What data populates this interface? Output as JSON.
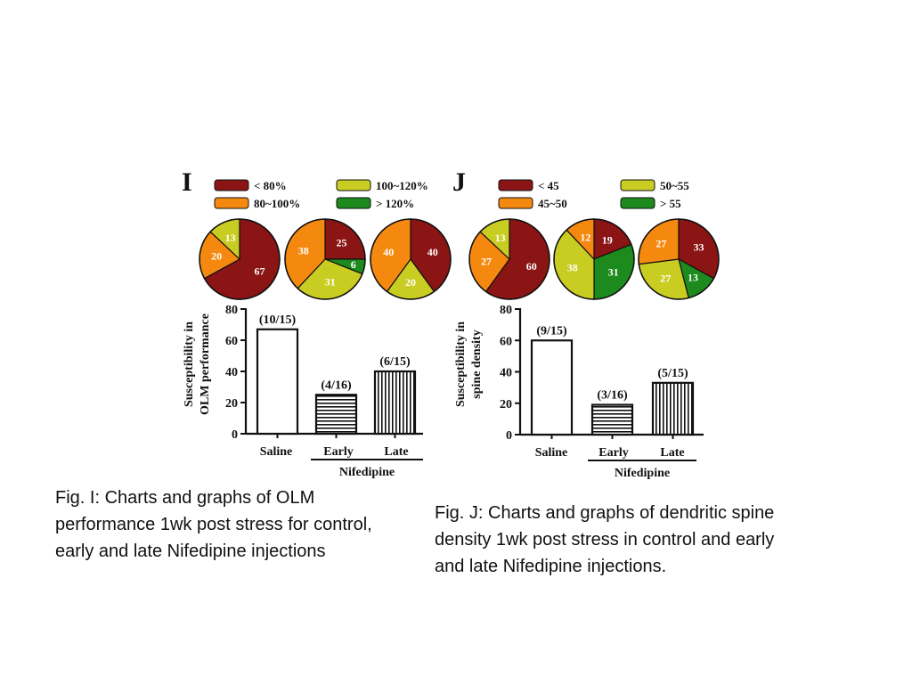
{
  "colors": {
    "dark_red": "#8b1414",
    "orange": "#f5890f",
    "yellow": "#c9cd22",
    "green": "#1d8a1d"
  },
  "chart_data": [
    {
      "type": "pie",
      "panel": "I",
      "legend": [
        {
          "label": "< 80%",
          "color": "#8b1414"
        },
        {
          "label": "80~100%",
          "color": "#f5890f"
        },
        {
          "label": "100~120%",
          "color": "#c9cd22"
        },
        {
          "label": "> 120%",
          "color": "#1d8a1d"
        }
      ],
      "pies": [
        {
          "slices": [
            {
              "value": 67,
              "color": "#8b1414"
            },
            {
              "value": 20,
              "color": "#f5890f"
            },
            {
              "value": 13,
              "color": "#c9cd22"
            }
          ]
        },
        {
          "slices": [
            {
              "value": 25,
              "color": "#8b1414"
            },
            {
              "value": 6,
              "color": "#1d8a1d"
            },
            {
              "value": 31,
              "color": "#c9cd22"
            },
            {
              "value": 38,
              "color": "#f5890f"
            }
          ]
        },
        {
          "slices": [
            {
              "value": 40,
              "color": "#8b1414"
            },
            {
              "value": 20,
              "color": "#c9cd22"
            },
            {
              "value": 40,
              "color": "#f5890f"
            }
          ]
        }
      ]
    },
    {
      "type": "bar",
      "panel": "I",
      "categories": [
        "Saline",
        "Early",
        "Late"
      ],
      "values": [
        67,
        25,
        40
      ],
      "bar_labels": [
        "(10/15)",
        "(4/16)",
        "(6/15)"
      ],
      "patterns": [
        "solid",
        "horizontal",
        "vertical"
      ],
      "ylabel_lines": [
        "Susceptibility in",
        "OLM performance"
      ],
      "yticks": [
        0,
        20,
        40,
        60,
        80
      ],
      "ylim": [
        0,
        80
      ],
      "group_label": "Nifedipine"
    },
    {
      "type": "pie",
      "panel": "J",
      "legend": [
        {
          "label": "< 45",
          "color": "#8b1414"
        },
        {
          "label": "45~50",
          "color": "#f5890f"
        },
        {
          "label": "50~55",
          "color": "#c9cd22"
        },
        {
          "label": "> 55",
          "color": "#1d8a1d"
        }
      ],
      "pies": [
        {
          "slices": [
            {
              "value": 60,
              "color": "#8b1414"
            },
            {
              "value": 27,
              "color": "#f5890f"
            },
            {
              "value": 13,
              "color": "#c9cd22"
            }
          ]
        },
        {
          "slices": [
            {
              "value": 19,
              "color": "#8b1414"
            },
            {
              "value": 31,
              "color": "#1d8a1d"
            },
            {
              "value": 38,
              "color": "#c9cd22"
            },
            {
              "value": 12,
              "color": "#f5890f"
            }
          ]
        },
        {
          "slices": [
            {
              "value": 33,
              "color": "#8b1414"
            },
            {
              "value": 13,
              "color": "#1d8a1d"
            },
            {
              "value": 27,
              "color": "#c9cd22"
            },
            {
              "value": 27,
              "color": "#f5890f"
            }
          ]
        }
      ]
    },
    {
      "type": "bar",
      "panel": "J",
      "categories": [
        "Saline",
        "Early",
        "Late"
      ],
      "values": [
        60,
        19,
        33
      ],
      "bar_labels": [
        "(9/15)",
        "(3/16)",
        "(5/15)"
      ],
      "patterns": [
        "solid",
        "horizontal",
        "vertical"
      ],
      "ylabel_lines": [
        "Susceptibility in",
        "spine density"
      ],
      "yticks": [
        0,
        20,
        40,
        60,
        80
      ],
      "ylim": [
        0,
        80
      ],
      "group_label": "Nifedipine"
    }
  ],
  "captions": {
    "fig_i": "Fig. I: Charts and graphs of OLM performance 1wk post stress for control, early and late Nifedipine injections",
    "fig_j": "Fig. J: Charts and graphs of dendritic spine density 1wk post stress in control and early and late Nifedipine injections."
  }
}
